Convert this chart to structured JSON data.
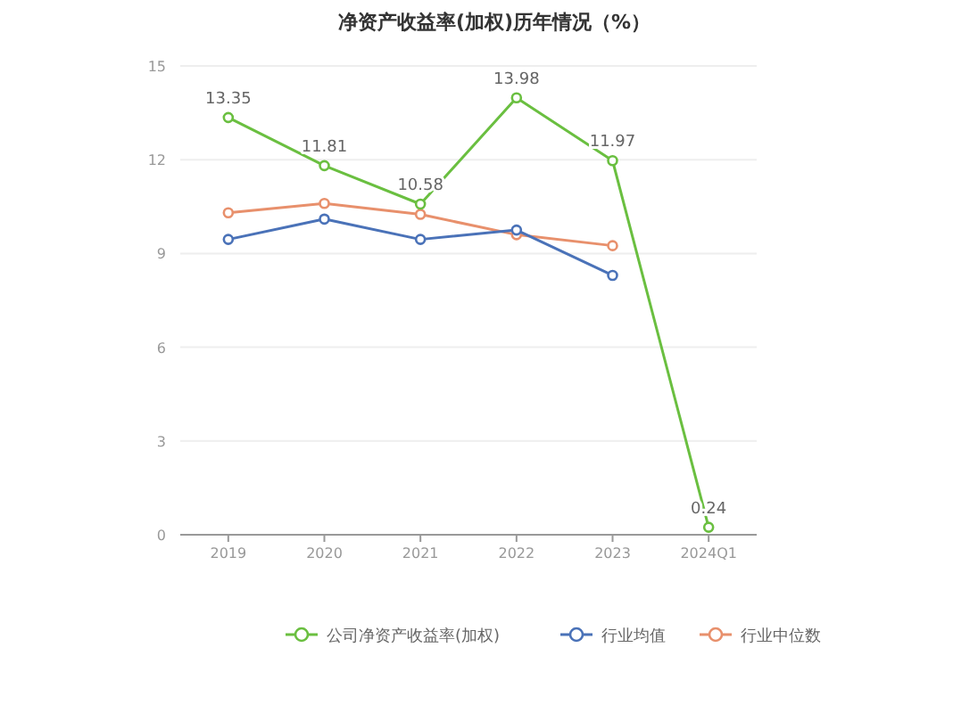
{
  "chart_data": {
    "type": "line",
    "title": "净资产收益率(加权)历年情况（%）",
    "categories": [
      "2019",
      "2020",
      "2021",
      "2022",
      "2023",
      "2024Q1"
    ],
    "series": [
      {
        "name": "公司净资产收益率(加权)",
        "color": "#6abf40",
        "values": [
          13.35,
          11.81,
          10.58,
          13.98,
          11.97,
          0.24
        ],
        "value_labels": [
          "13.35",
          "11.81",
          "10.58",
          "13.98",
          "11.97",
          "0.24"
        ]
      },
      {
        "name": "行业均值",
        "color": "#4a72b8",
        "values": [
          9.45,
          10.1,
          9.45,
          9.75,
          8.3,
          null
        ]
      },
      {
        "name": "行业中位数",
        "color": "#e8906c",
        "values": [
          10.3,
          10.6,
          10.25,
          9.6,
          9.25,
          null
        ]
      }
    ],
    "ylim": [
      0,
      15
    ],
    "yticks": [
      0,
      3,
      6,
      9,
      12,
      15
    ],
    "grid": "y",
    "legend": "bottom",
    "marker": "circle",
    "line_style": "solid"
  }
}
